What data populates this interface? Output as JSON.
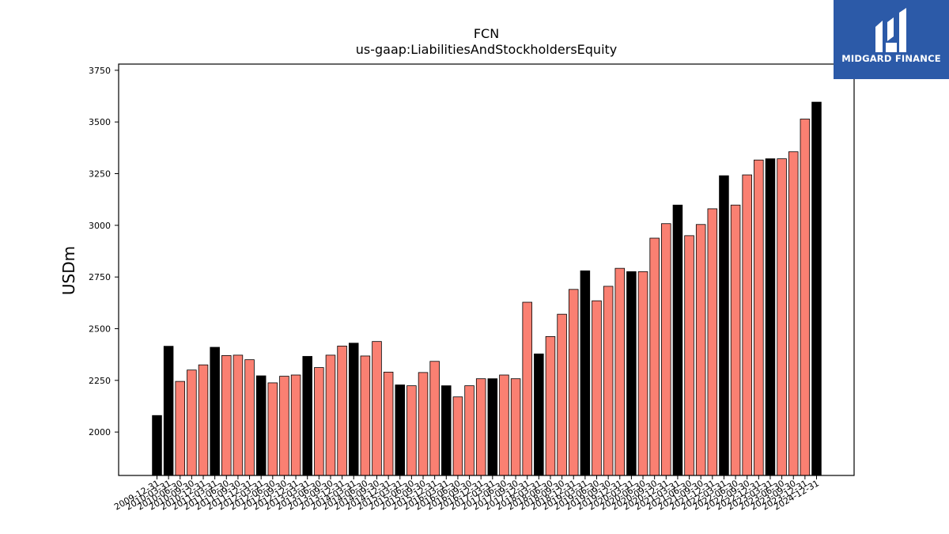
{
  "brand": {
    "name": "MIDGARD FINANCE",
    "background": "#2c5aa8",
    "text_color": "#ffffff"
  },
  "chart_data": {
    "type": "bar",
    "title": "FCN",
    "subtitle": "us-gaap:LiabilitiesAndStockholdersEquity",
    "ylabel": "USDm",
    "xlabel": "",
    "ylim": [
      1790,
      3780
    ],
    "yticks": [
      2000,
      2250,
      2500,
      2750,
      3000,
      3250,
      3500,
      3750
    ],
    "grid": false,
    "colors": {
      "annual": "#000000",
      "quarterly": "#fa8072",
      "edge": "#000000"
    },
    "bars": [
      {
        "date": "2009-12-31",
        "value": 2080,
        "annual": true
      },
      {
        "date": "2010-03-31",
        "value": 2415,
        "annual": true
      },
      {
        "date": "2010-06-30",
        "value": 2245,
        "annual": false
      },
      {
        "date": "2010-09-30",
        "value": 2300,
        "annual": false
      },
      {
        "date": "2010-12-31",
        "value": 2325,
        "annual": false
      },
      {
        "date": "2011-03-31",
        "value": 2410,
        "annual": true
      },
      {
        "date": "2011-06-30",
        "value": 2370,
        "annual": false
      },
      {
        "date": "2011-09-30",
        "value": 2372,
        "annual": false
      },
      {
        "date": "2011-12-31",
        "value": 2350,
        "annual": false
      },
      {
        "date": "2012-03-31",
        "value": 2272,
        "annual": true
      },
      {
        "date": "2012-06-30",
        "value": 2238,
        "annual": false
      },
      {
        "date": "2012-09-30",
        "value": 2270,
        "annual": false
      },
      {
        "date": "2012-12-31",
        "value": 2276,
        "annual": false
      },
      {
        "date": "2013-03-31",
        "value": 2366,
        "annual": true
      },
      {
        "date": "2013-06-30",
        "value": 2312,
        "annual": false
      },
      {
        "date": "2013-09-30",
        "value": 2372,
        "annual": false
      },
      {
        "date": "2013-12-31",
        "value": 2416,
        "annual": false
      },
      {
        "date": "2014-03-31",
        "value": 2430,
        "annual": true
      },
      {
        "date": "2014-06-30",
        "value": 2368,
        "annual": false
      },
      {
        "date": "2014-09-30",
        "value": 2438,
        "annual": false
      },
      {
        "date": "2014-12-31",
        "value": 2290,
        "annual": false
      },
      {
        "date": "2015-03-31",
        "value": 2228,
        "annual": true
      },
      {
        "date": "2015-06-30",
        "value": 2224,
        "annual": false
      },
      {
        "date": "2015-09-30",
        "value": 2288,
        "annual": false
      },
      {
        "date": "2015-12-31",
        "value": 2342,
        "annual": false
      },
      {
        "date": "2016-03-31",
        "value": 2224,
        "annual": true
      },
      {
        "date": "2016-06-30",
        "value": 2170,
        "annual": false
      },
      {
        "date": "2016-09-30",
        "value": 2224,
        "annual": false
      },
      {
        "date": "2016-12-31",
        "value": 2258,
        "annual": false
      },
      {
        "date": "2017-03-31",
        "value": 2258,
        "annual": true
      },
      {
        "date": "2017-06-30",
        "value": 2276,
        "annual": false
      },
      {
        "date": "2017-09-30",
        "value": 2258,
        "annual": false
      },
      {
        "date": "2017-12-31",
        "value": 2628,
        "annual": false
      },
      {
        "date": "2018-03-31",
        "value": 2378,
        "annual": true
      },
      {
        "date": "2018-06-30",
        "value": 2462,
        "annual": false
      },
      {
        "date": "2018-09-30",
        "value": 2570,
        "annual": false
      },
      {
        "date": "2018-12-31",
        "value": 2690,
        "annual": false
      },
      {
        "date": "2019-03-31",
        "value": 2780,
        "annual": true
      },
      {
        "date": "2019-06-30",
        "value": 2635,
        "annual": false
      },
      {
        "date": "2019-09-30",
        "value": 2705,
        "annual": false
      },
      {
        "date": "2019-12-31",
        "value": 2792,
        "annual": false
      },
      {
        "date": "2020-03-31",
        "value": 2776,
        "annual": true
      },
      {
        "date": "2020-06-30",
        "value": 2776,
        "annual": false
      },
      {
        "date": "2020-09-30",
        "value": 2938,
        "annual": false
      },
      {
        "date": "2020-12-31",
        "value": 3008,
        "annual": false
      },
      {
        "date": "2021-03-31",
        "value": 3098,
        "annual": true
      },
      {
        "date": "2021-06-30",
        "value": 2950,
        "annual": false
      },
      {
        "date": "2021-09-30",
        "value": 3004,
        "annual": false
      },
      {
        "date": "2021-12-31",
        "value": 3080,
        "annual": false
      },
      {
        "date": "2022-03-31",
        "value": 3240,
        "annual": true
      },
      {
        "date": "2022-06-30",
        "value": 3098,
        "annual": false
      },
      {
        "date": "2022-09-30",
        "value": 3244,
        "annual": false
      },
      {
        "date": "2022-12-31",
        "value": 3316,
        "annual": false
      },
      {
        "date": "2023-03-31",
        "value": 3322,
        "annual": true
      },
      {
        "date": "2023-06-30",
        "value": 3322,
        "annual": false
      },
      {
        "date": "2023-09-30",
        "value": 3356,
        "annual": false
      },
      {
        "date": "2023-12-31",
        "value": 3514,
        "annual": false
      },
      {
        "date": "2024-12-31",
        "value": 3596,
        "annual": true
      }
    ]
  }
}
